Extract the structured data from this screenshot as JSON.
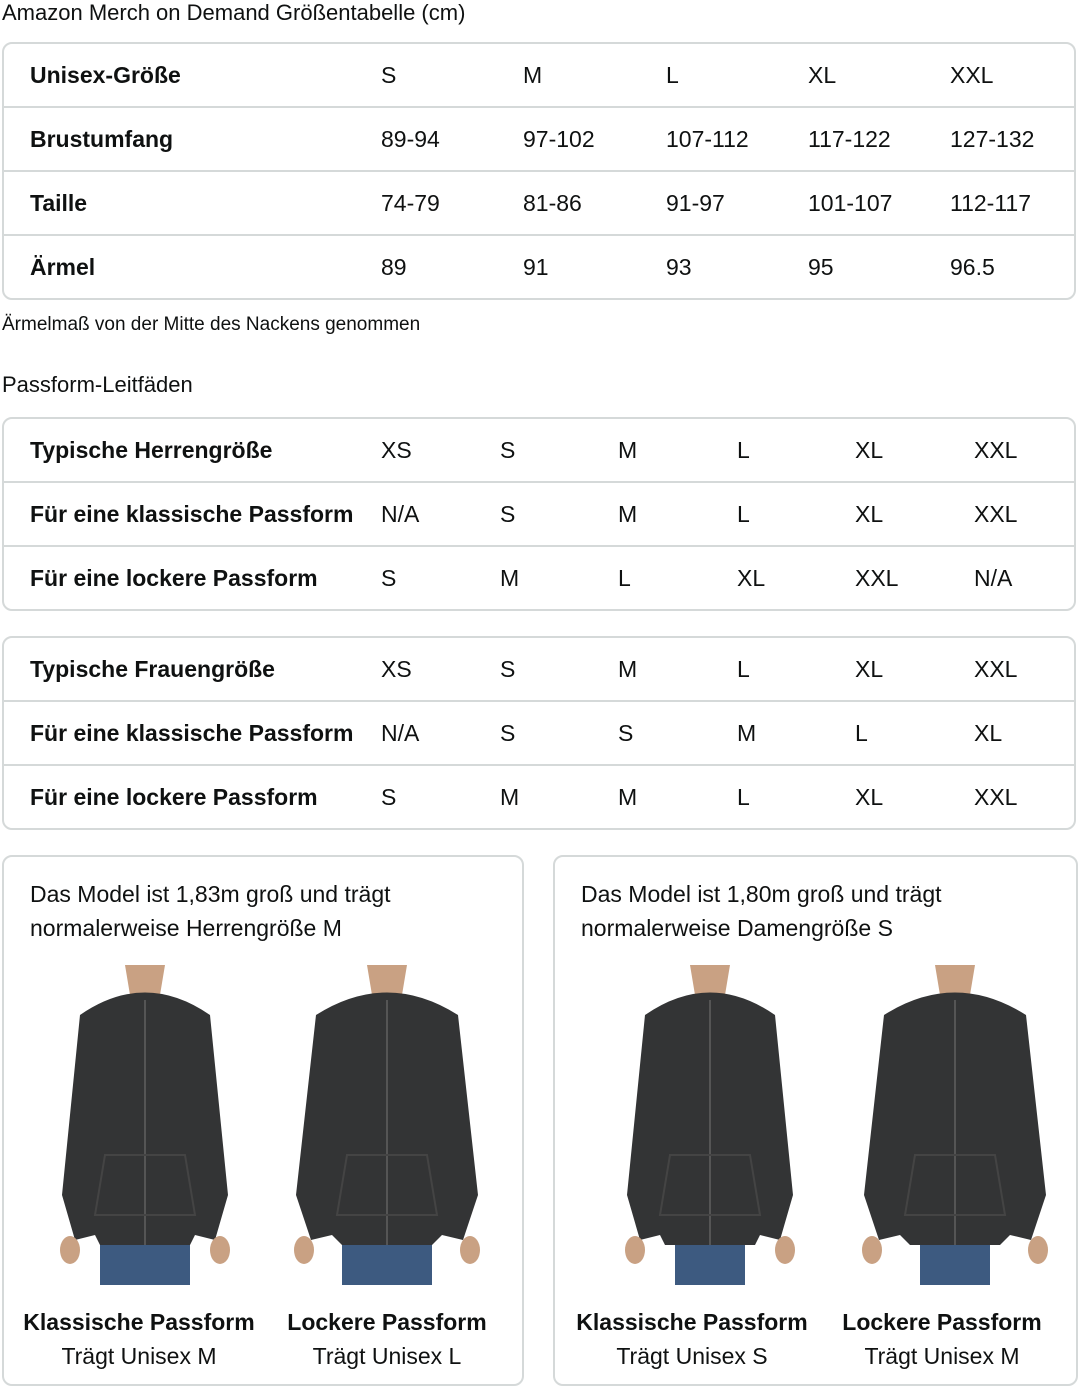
{
  "title": "Amazon Merch on Demand Größentabelle (cm)",
  "size_table": {
    "rows": [
      [
        "Unisex-Größe",
        "S",
        "M",
        "L",
        "XL",
        "XXL"
      ],
      [
        "Brustumfang",
        "89-94",
        "97-102",
        "107-112",
        "117-122",
        "127-132"
      ],
      [
        "Taille",
        "74-79",
        "81-86",
        "91-97",
        "101-107",
        "112-117"
      ],
      [
        "Ärmel",
        "89",
        "91",
        "93",
        "95",
        "96.5"
      ]
    ]
  },
  "note": "Ärmelmaß von der Mitte des Nackens genommen",
  "fit_heading": "Passform-Leitfäden",
  "men_table": {
    "rows": [
      [
        "Typische Herrengröße",
        "XS",
        "S",
        "M",
        "L",
        "XL",
        "XXL"
      ],
      [
        "Für eine klassische Passform",
        "N/A",
        "S",
        "M",
        "L",
        "XL",
        "XXL"
      ],
      [
        "Für eine lockere Passform",
        "S",
        "M",
        "L",
        "XL",
        "XXL",
        "N/A"
      ]
    ]
  },
  "women_table": {
    "rows": [
      [
        "Typische Frauengröße",
        "XS",
        "S",
        "M",
        "L",
        "XL",
        "XXL"
      ],
      [
        "Für eine klassische Passform",
        "N/A",
        "S",
        "S",
        "M",
        "L",
        "XL"
      ],
      [
        "Für eine lockere Passform",
        "S",
        "M",
        "M",
        "L",
        "XL",
        "XXL"
      ]
    ]
  },
  "cards": [
    {
      "text1": "Das Model ist 1,83m groß und trägt",
      "text2": "normalerweise Herrengröße M",
      "photos": [
        {
          "title": "Klassische Passform",
          "sub": "Trägt Unisex M"
        },
        {
          "title": "Lockere Passform",
          "sub": "Trägt Unisex L"
        }
      ]
    },
    {
      "text1": "Das Model ist 1,80m groß und trägt",
      "text2": "normalerweise Damengröße S",
      "photos": [
        {
          "title": "Klassische Passform",
          "sub": "Trägt Unisex S"
        },
        {
          "title": "Lockere Passform",
          "sub": "Trägt Unisex M"
        }
      ]
    }
  ],
  "colors": {
    "hoodie": "#333435",
    "jeans": "#3d5a80",
    "border": "#d5d9d9"
  }
}
